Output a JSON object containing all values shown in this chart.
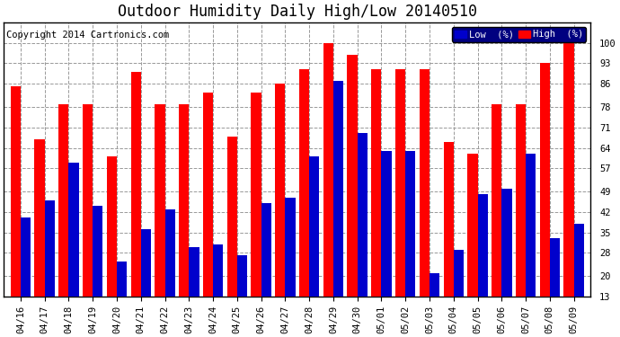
{
  "title": "Outdoor Humidity Daily High/Low 20140510",
  "copyright": "Copyright 2014 Cartronics.com",
  "legend_low": "Low  (%)",
  "legend_high": "High  (%)",
  "dates": [
    "04/16",
    "04/17",
    "04/18",
    "04/19",
    "04/20",
    "04/21",
    "04/22",
    "04/23",
    "04/24",
    "04/25",
    "04/26",
    "04/27",
    "04/28",
    "04/29",
    "04/30",
    "05/01",
    "05/02",
    "05/03",
    "05/04",
    "05/05",
    "05/06",
    "05/07",
    "05/08",
    "05/09"
  ],
  "high": [
    85,
    67,
    79,
    79,
    61,
    90,
    79,
    79,
    83,
    68,
    83,
    86,
    91,
    100,
    96,
    91,
    91,
    91,
    66,
    62,
    79,
    79,
    93,
    100
  ],
  "low": [
    40,
    46,
    59,
    44,
    25,
    36,
    43,
    30,
    31,
    27,
    45,
    47,
    61,
    87,
    69,
    63,
    63,
    21,
    29,
    48,
    50,
    62,
    33,
    38
  ],
  "bar_color_high": "#ff0000",
  "bar_color_low": "#0000cc",
  "bg_color": "#ffffff",
  "grid_color": "#999999",
  "yticks": [
    13,
    20,
    28,
    35,
    42,
    49,
    57,
    64,
    71,
    78,
    86,
    93,
    100
  ],
  "ylim": [
    13,
    107
  ],
  "title_fontsize": 12,
  "copyright_fontsize": 7.5,
  "tick_fontsize": 7.5,
  "legend_fontsize": 7.5,
  "legend_bg": "#000080"
}
